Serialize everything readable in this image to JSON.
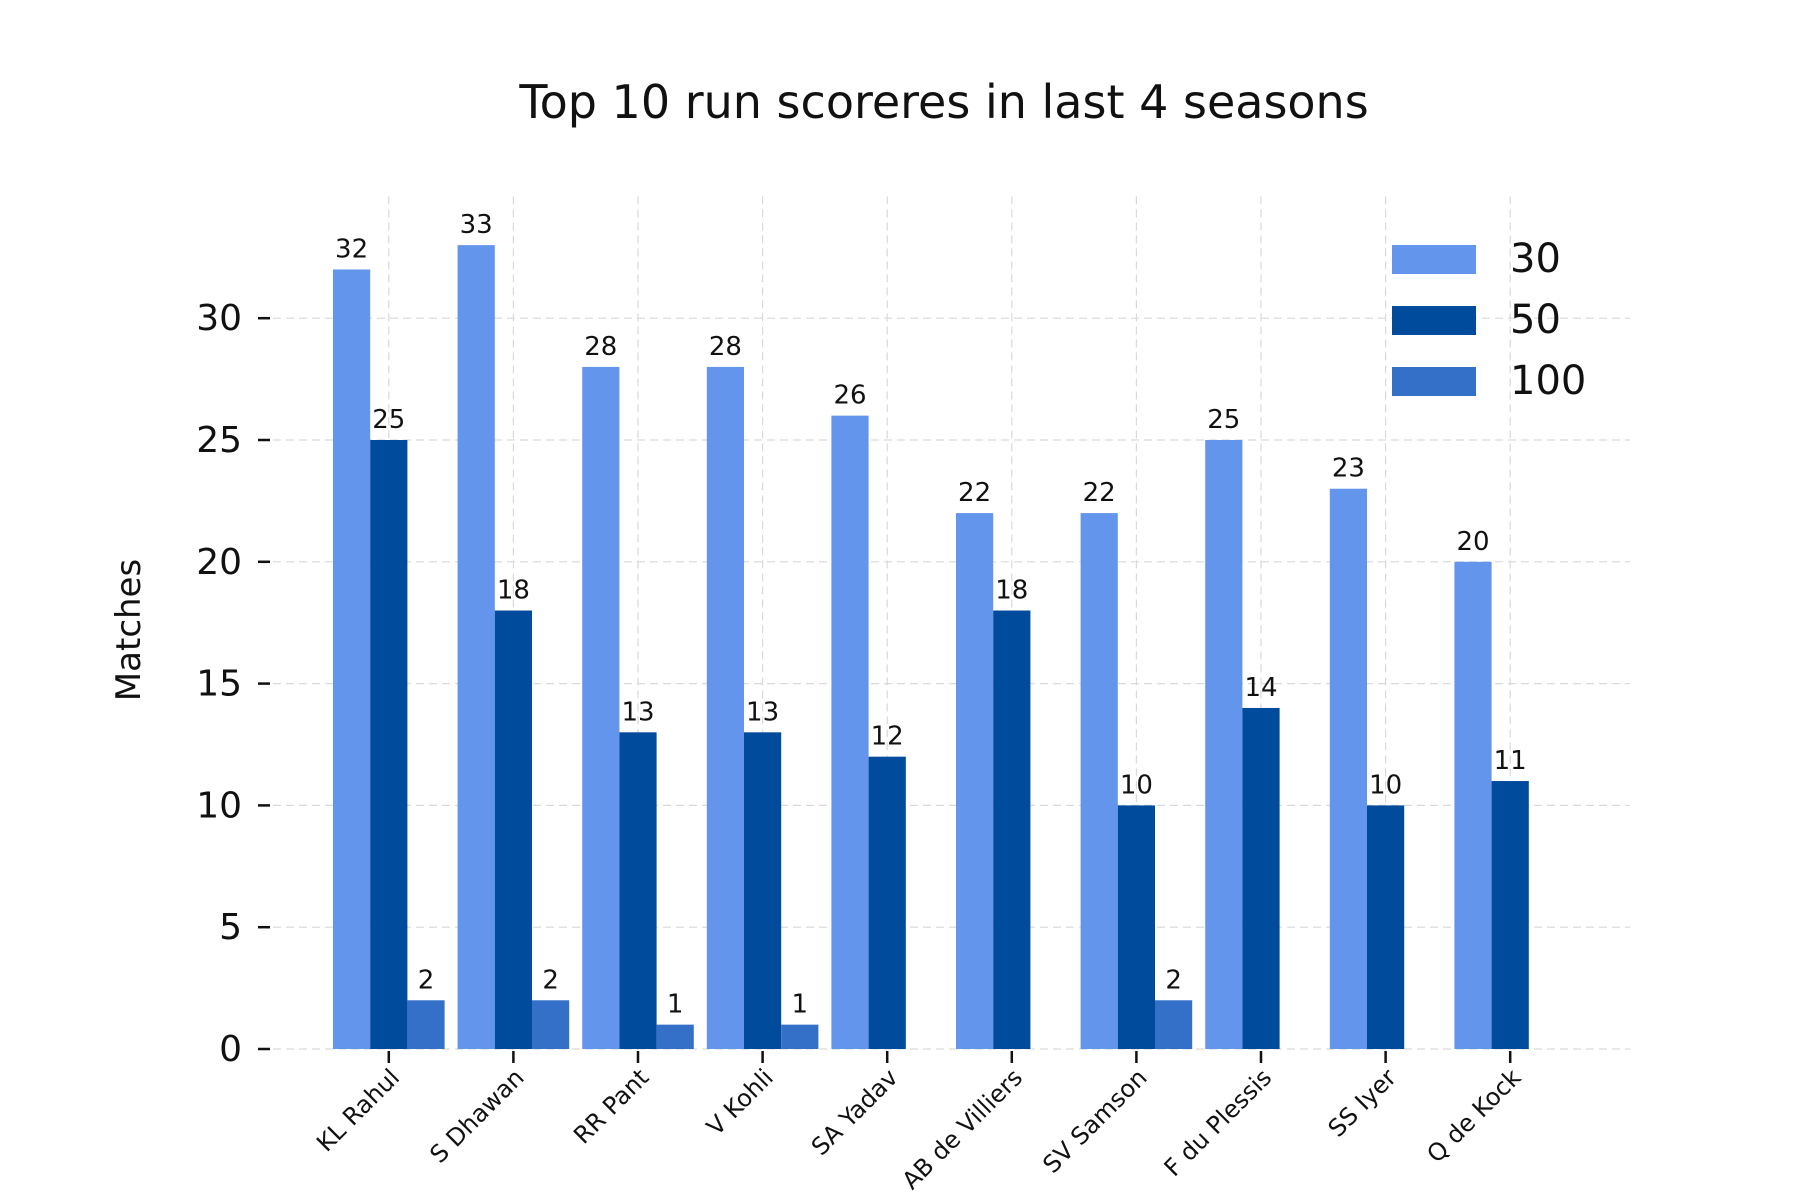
{
  "chart_data": {
    "type": "bar",
    "title": "Top 10 run scoreres in last 4 seasons",
    "xlabel": "",
    "ylabel": "Matches",
    "ylim": [
      0,
      35
    ],
    "yticks": [
      0,
      5,
      10,
      15,
      20,
      25,
      30
    ],
    "grid": true,
    "legend_position": "top-right",
    "categories": [
      "KL Rahul",
      "S Dhawan",
      "RR Pant",
      "V Kohli",
      "SA Yadav",
      "AB de Villiers",
      "SV Samson",
      "F du Plessis",
      "SS Iyer",
      "Q de Kock"
    ],
    "series": [
      {
        "name": "30",
        "color": "#6495ED",
        "values": [
          32,
          33,
          28,
          28,
          26,
          22,
          22,
          25,
          23,
          20
        ]
      },
      {
        "name": "50",
        "color": "#004B9B",
        "values": [
          25,
          18,
          13,
          13,
          12,
          18,
          10,
          14,
          10,
          11
        ]
      },
      {
        "name": "100",
        "color": "#3470C8",
        "values": [
          2,
          2,
          1,
          1,
          0,
          0,
          2,
          0,
          0,
          0
        ]
      }
    ]
  }
}
